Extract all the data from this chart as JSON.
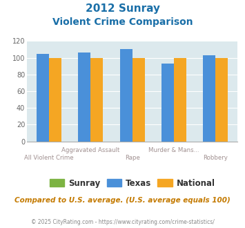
{
  "title_line1": "2012 Sunray",
  "title_line2": "Violent Crime Comparison",
  "categories": [
    "All Violent Crime",
    "Aggravated Assault",
    "Rape",
    "Murder & Mans...",
    "Robbery"
  ],
  "xtick_top": [
    "",
    "Aggravated Assault",
    "",
    "Murder & Mans...",
    ""
  ],
  "xtick_bot": [
    "All Violent Crime",
    "",
    "Rape",
    "",
    "Robbery"
  ],
  "texas": [
    105,
    106,
    110,
    93,
    103
  ],
  "national": [
    100,
    100,
    100,
    100,
    100
  ],
  "ylim": [
    0,
    120
  ],
  "yticks": [
    0,
    20,
    40,
    60,
    80,
    100,
    120
  ],
  "color_sunray": "#7cb342",
  "color_texas": "#4a90d9",
  "color_national": "#f5a623",
  "bg_color": "#dce9ed",
  "title_color": "#1a6fa8",
  "label_color": "#a09090",
  "footer_color": "#c47a00",
  "copyright_color": "#888888",
  "footer_text": "Compared to U.S. average. (U.S. average equals 100)",
  "copyright_text": "© 2025 CityRating.com - https://www.cityrating.com/crime-statistics/",
  "legend_labels": [
    "Sunray",
    "Texas",
    "National"
  ]
}
